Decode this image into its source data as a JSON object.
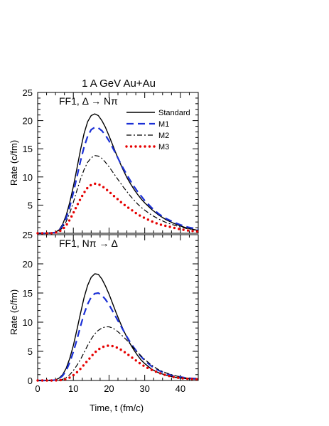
{
  "title": "1 A GeV   Au+Au",
  "xlabel": "Time,  t (fm/c)",
  "ylabel": "Rate  (c/fm)",
  "colors": {
    "standard": "#000000",
    "m1": "#1a2fd6",
    "m2": "#000000",
    "m3": "#e60000"
  },
  "chart_data": [
    {
      "type": "line",
      "panel_label": "FF1,   Δ → Nπ",
      "xlim": [
        0,
        45
      ],
      "ylim": [
        0,
        25
      ],
      "x_ticks": [
        0,
        10,
        20,
        30,
        40
      ],
      "y_ticks": [
        5,
        10,
        15,
        20,
        25
      ],
      "y_tick_labels": [
        "5",
        "10",
        "15",
        "20",
        "25"
      ],
      "legend": {
        "position": "top-right",
        "entries": [
          "Standard",
          "M1",
          "M2",
          "M3"
        ]
      },
      "x": [
        0,
        2,
        4,
        5,
        6,
        7,
        8,
        9,
        10,
        11,
        12,
        13,
        14,
        15,
        16,
        17,
        18,
        19,
        20,
        21,
        22,
        23,
        24,
        25,
        26,
        27,
        28,
        29,
        30,
        32,
        34,
        36,
        38,
        40,
        42,
        45
      ],
      "series": [
        {
          "name": "Standard",
          "style": "solid",
          "values": [
            0,
            0,
            0.05,
            0.2,
            0.6,
            1.6,
            3.2,
            5.5,
            8.3,
            11.5,
            14.8,
            17.7,
            19.8,
            20.9,
            21.2,
            20.9,
            20.0,
            18.8,
            17.3,
            15.7,
            14.1,
            12.6,
            11.2,
            9.9,
            8.8,
            7.8,
            6.9,
            6.1,
            5.4,
            4.2,
            3.2,
            2.4,
            1.8,
            1.3,
            0.9,
            0.5
          ]
        },
        {
          "name": "M1",
          "style": "dashed",
          "values": [
            0,
            0,
            0.05,
            0.15,
            0.5,
            1.3,
            2.7,
            4.7,
            7.2,
            10.0,
            12.8,
            15.3,
            17.2,
            18.4,
            18.8,
            18.7,
            18.2,
            17.4,
            16.4,
            15.2,
            14.0,
            12.7,
            11.5,
            10.4,
            9.3,
            8.3,
            7.4,
            6.6,
            5.8,
            4.5,
            3.4,
            2.6,
            2.0,
            1.5,
            1.1,
            0.7
          ]
        },
        {
          "name": "M2",
          "style": "dashdot",
          "values": [
            0,
            0,
            0.05,
            0.15,
            0.4,
            1.0,
            2.1,
            3.6,
            5.5,
            7.6,
            9.6,
            11.3,
            12.6,
            13.4,
            13.8,
            13.7,
            13.3,
            12.6,
            11.8,
            10.9,
            10.0,
            9.1,
            8.2,
            7.4,
            6.6,
            5.9,
            5.2,
            4.6,
            4.1,
            3.2,
            2.5,
            1.9,
            1.5,
            1.1,
            0.8,
            0.5
          ]
        },
        {
          "name": "M3",
          "style": "dotted",
          "values": [
            0,
            0,
            0.02,
            0.1,
            0.3,
            0.7,
            1.4,
            2.4,
            3.6,
            4.9,
            6.1,
            7.2,
            8.1,
            8.6,
            8.8,
            8.7,
            8.4,
            7.9,
            7.4,
            6.8,
            6.3,
            5.7,
            5.2,
            4.7,
            4.3,
            3.8,
            3.4,
            3.0,
            2.7,
            2.1,
            1.6,
            1.3,
            1.0,
            0.7,
            0.5,
            0.3
          ]
        }
      ]
    },
    {
      "type": "line",
      "panel_label": "FF1,   Nπ → Δ",
      "xlim": [
        0,
        45
      ],
      "ylim": [
        0,
        25
      ],
      "x_ticks": [
        0,
        10,
        20,
        30,
        40
      ],
      "x_tick_labels": [
        "0",
        "10",
        "20",
        "30",
        "40"
      ],
      "y_ticks": [
        0,
        5,
        10,
        15,
        20,
        25
      ],
      "y_tick_labels": [
        "0",
        "5",
        "10",
        "15",
        "20",
        "25"
      ],
      "x": [
        0,
        2,
        4,
        5,
        6,
        7,
        8,
        9,
        10,
        11,
        12,
        13,
        14,
        15,
        16,
        17,
        18,
        19,
        20,
        21,
        22,
        23,
        24,
        25,
        26,
        27,
        28,
        29,
        30,
        32,
        34,
        36,
        38,
        40,
        42,
        45
      ],
      "series": [
        {
          "name": "Standard",
          "style": "solid",
          "values": [
            0,
            0,
            0.02,
            0.1,
            0.4,
            1.0,
            2.1,
            3.8,
            6.0,
            8.7,
            11.5,
            14.2,
            16.3,
            17.7,
            18.3,
            18.2,
            17.4,
            16.2,
            14.8,
            13.2,
            11.6,
            10.1,
            8.7,
            7.4,
            6.2,
            5.2,
            4.3,
            3.5,
            2.9,
            1.9,
            1.3,
            0.9,
            0.6,
            0.4,
            0.3,
            0.2
          ]
        },
        {
          "name": "M1",
          "style": "dashed",
          "values": [
            0,
            0,
            0.02,
            0.08,
            0.3,
            0.8,
            1.7,
            3.1,
            4.9,
            7.0,
            9.3,
            11.4,
            13.1,
            14.3,
            14.9,
            15.0,
            14.6,
            13.9,
            13.0,
            11.9,
            10.8,
            9.7,
            8.6,
            7.5,
            6.5,
            5.6,
            4.8,
            4.1,
            3.4,
            2.4,
            1.7,
            1.2,
            0.8,
            0.6,
            0.4,
            0.3
          ]
        },
        {
          "name": "M2",
          "style": "dashdot",
          "values": [
            0,
            0,
            0,
            0.02,
            0.08,
            0.2,
            0.5,
            1.0,
            1.7,
            2.6,
            3.6,
            4.8,
            6.0,
            7.1,
            8.0,
            8.6,
            9.0,
            9.2,
            9.2,
            9.0,
            8.6,
            8.1,
            7.5,
            6.9,
            6.2,
            5.5,
            4.8,
            4.2,
            3.6,
            2.6,
            1.8,
            1.3,
            0.9,
            0.6,
            0.4,
            0.3
          ]
        },
        {
          "name": "M3",
          "style": "dotted",
          "values": [
            0,
            0,
            0,
            0.01,
            0.04,
            0.1,
            0.25,
            0.5,
            0.9,
            1.4,
            2.0,
            2.7,
            3.4,
            4.1,
            4.8,
            5.3,
            5.7,
            5.9,
            6.0,
            5.9,
            5.7,
            5.4,
            5.0,
            4.6,
            4.1,
            3.7,
            3.2,
            2.8,
            2.4,
            1.8,
            1.3,
            0.9,
            0.6,
            0.4,
            0.3,
            0.2
          ]
        }
      ]
    }
  ]
}
